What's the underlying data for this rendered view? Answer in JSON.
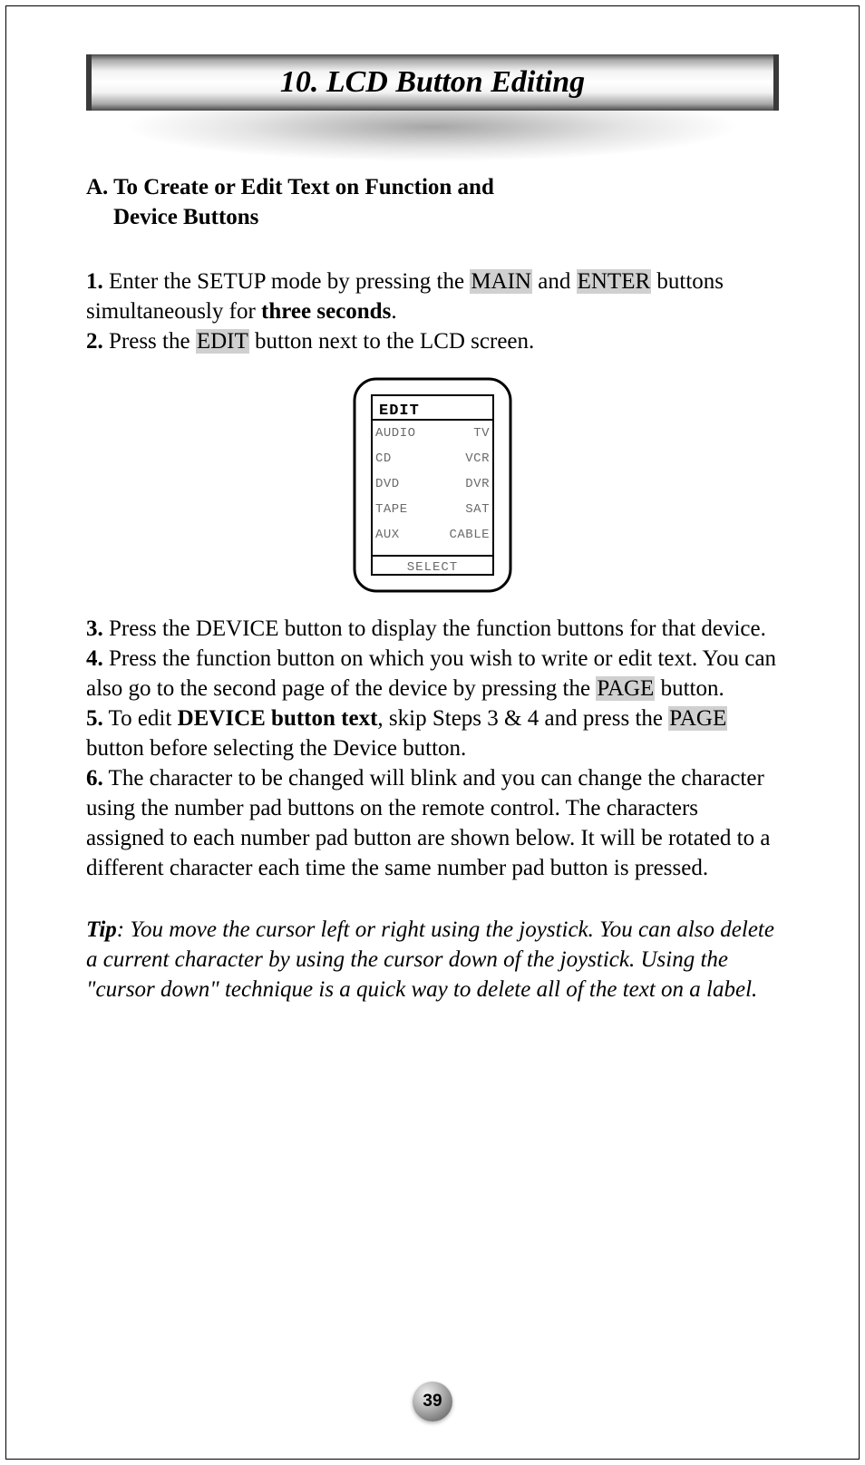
{
  "title": "10. LCD Button Editing",
  "section_heading_line1": "A. To Create or Edit Text on Function and",
  "section_heading_line2": "Device Buttons",
  "steps": {
    "s1_num": "1.",
    "s1_a": " Enter the SETUP mode by pressing the ",
    "s1_hl1": "MAIN",
    "s1_b": " and ",
    "s1_hl2": "ENTER",
    "s1_c": " buttons simultaneously for ",
    "s1_bold": "three seconds",
    "s1_d": ".",
    "s2_num": "2.",
    "s2_a": " Press the ",
    "s2_hl1": "EDIT",
    "s2_b": " button next to the LCD screen.",
    "s3_num": "3.",
    "s3_a": " Press the DEVICE button to display the function buttons for that device.",
    "s4_num": "4.",
    "s4_a": " Press the function button on which you wish to write or edit text. You can also go to the second page of the device by pressing the ",
    "s4_hl1": "PAGE",
    "s4_b": " button.",
    "s5_num": "5.",
    "s5_a": " To edit ",
    "s5_bold": "DEVICE button text",
    "s5_b": ", skip Steps 3 & 4 and press the ",
    "s5_hl1": "PAGE",
    "s5_c": " button before selecting the Device button.",
    "s6_num": "6.",
    "s6_a": " The character to be changed will blink and you can change the character using the number pad buttons on the remote control. The characters assigned to each number pad button are shown below. It will be rotated to a different character each time the same number pad button is pressed."
  },
  "tip_label": "Tip",
  "tip_text": ": You move the cursor left or right using the joystick. You can also delete a current character by using the cursor down of the joystick. Using the \"cursor down\" technique is a quick way to delete all of the text on a label.",
  "lcd": {
    "header": "EDIT",
    "rows": [
      {
        "left": "AUDIO",
        "right": "TV"
      },
      {
        "left": "CD",
        "right": "VCR"
      },
      {
        "left": "DVD",
        "right": "DVR"
      },
      {
        "left": "TAPE",
        "right": "SAT"
      },
      {
        "left": "AUX",
        "right": "CABLE"
      }
    ],
    "footer": "SELECT",
    "outer_stroke": "#000000",
    "body_fill": "#ffffff",
    "pixel_font_fill": "#6a6a6a",
    "header_fill": "#000000"
  },
  "page_number": "39",
  "colors": {
    "highlight_bg": "#d0d0d0",
    "text_color": "#000000",
    "page_bg": "#ffffff"
  }
}
